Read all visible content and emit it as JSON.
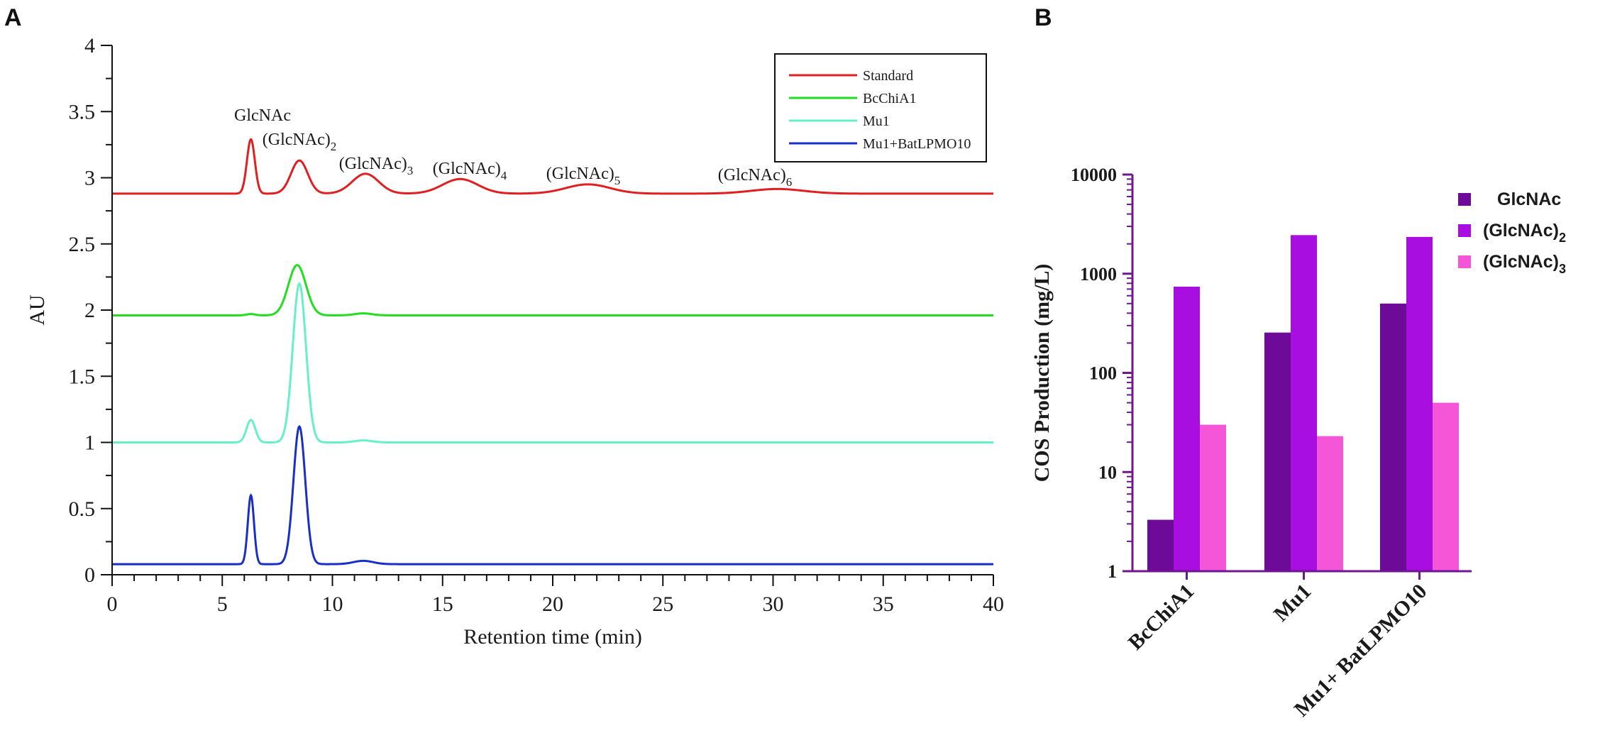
{
  "chart_data": [
    {
      "panel": "A",
      "type": "line",
      "xlabel": "Retention time (min)",
      "ylabel": "AU",
      "xlim": [
        0,
        40
      ],
      "ylim": [
        0,
        4
      ],
      "xticks": [
        0,
        5,
        10,
        15,
        20,
        25,
        30,
        35,
        40
      ],
      "xtick_labels": [
        "0",
        "5",
        "10",
        "15",
        "20",
        "25",
        "30",
        "35",
        "40"
      ],
      "yticks": [
        0,
        0.5,
        1,
        1.5,
        2,
        2.5,
        3,
        3.5,
        4
      ],
      "ytick_labels": [
        "0",
        "0.5",
        "1",
        "1.5",
        "2",
        "2.5",
        "3",
        "3.5",
        "4"
      ],
      "legend": {
        "position": "top-right",
        "entries": [
          {
            "label": "Standard",
            "color": "#e02020"
          },
          {
            "label": "BcChiA1",
            "color": "#22dd22"
          },
          {
            "label": "Mu1",
            "color": "#66f0c8"
          },
          {
            "label": "Mu1+BatLPMO10",
            "color": "#1a2ec8"
          }
        ]
      },
      "series": [
        {
          "name": "Standard",
          "color": "#e02020",
          "baseline": 2.88,
          "peaks": [
            [
              6.3,
              0.41,
              0.18
            ],
            [
              8.5,
              0.25,
              0.38
            ],
            [
              11.5,
              0.15,
              0.6
            ],
            [
              15.8,
              0.11,
              0.8
            ],
            [
              21.6,
              0.07,
              1.0
            ],
            [
              30.2,
              0.035,
              1.2
            ]
          ]
        },
        {
          "name": "BcChiA1",
          "color": "#22dd22",
          "baseline": 1.96,
          "peaks": [
            [
              6.3,
              0.01,
              0.2
            ],
            [
              8.4,
              0.38,
              0.4
            ],
            [
              11.4,
              0.015,
              0.4
            ]
          ]
        },
        {
          "name": "Mu1",
          "color": "#66f0c8",
          "baseline": 1.0,
          "peaks": [
            [
              6.3,
              0.17,
              0.2
            ],
            [
              8.5,
              1.2,
              0.3
            ],
            [
              11.4,
              0.015,
              0.4
            ]
          ]
        },
        {
          "name": "Mu1+BatLPMO10",
          "color": "#1a2ec8",
          "baseline": 0.08,
          "peaks": [
            [
              6.3,
              0.52,
              0.14
            ],
            [
              8.5,
              1.04,
              0.27
            ],
            [
              11.4,
              0.025,
              0.45
            ]
          ]
        }
      ],
      "peak_annotations": [
        {
          "text": "GlcNAc",
          "sub": ""
        },
        {
          "text": "(GlcNAc)",
          "sub": "2"
        },
        {
          "text": "(GlcNAc)",
          "sub": "3"
        },
        {
          "text": "(GlcNAc)",
          "sub": "4"
        },
        {
          "text": "(GlcNAc)",
          "sub": "5"
        },
        {
          "text": "(GlcNAc)",
          "sub": "6"
        }
      ]
    },
    {
      "panel": "B",
      "type": "bar",
      "yscale": "log",
      "ylabel": "COS Production (mg/L)",
      "ylim": [
        1,
        10000
      ],
      "yticks": [
        1,
        10,
        100,
        1000,
        10000
      ],
      "ytick_labels": [
        "1",
        "10",
        "100",
        "1000",
        "10000"
      ],
      "categories": [
        "BcChiA1",
        "Mu1",
        "Mu1+ BatLPMO10"
      ],
      "series": [
        {
          "name": "GlcNAc",
          "sub": "",
          "color": "#6e0a98",
          "values": [
            3.3,
            255,
            500
          ]
        },
        {
          "name": "(GlcNAc)",
          "sub": "2",
          "color": "#a90ee0",
          "values": [
            740,
            2450,
            2350
          ]
        },
        {
          "name": "(GlcNAc)",
          "sub": "3",
          "color": "#f556d8",
          "values": [
            30,
            23,
            50
          ]
        }
      ],
      "axis_color": "#6e1790"
    }
  ],
  "panel_labels": [
    "A",
    "B"
  ]
}
